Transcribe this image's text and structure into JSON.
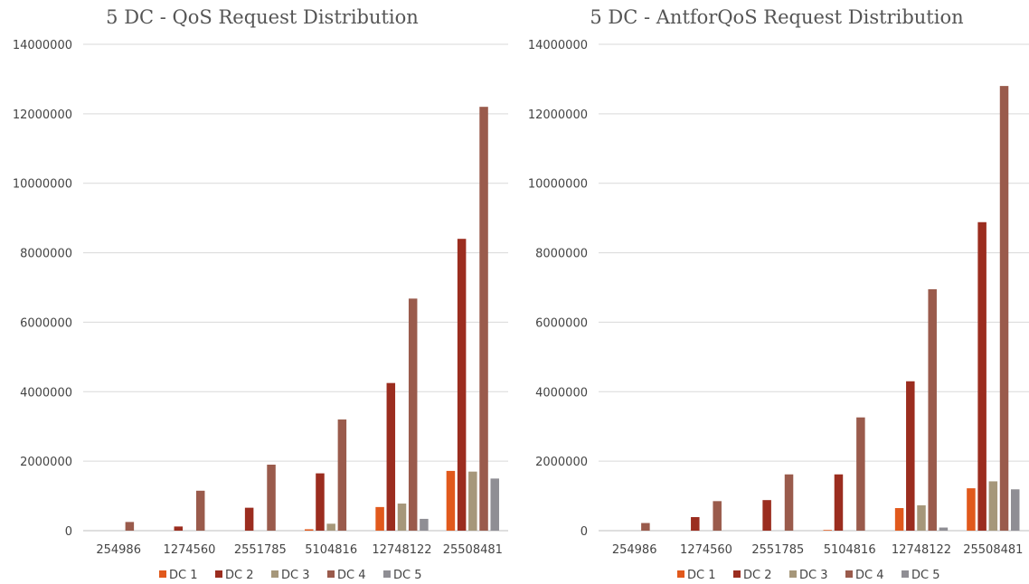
{
  "chart_data": [
    {
      "type": "bar",
      "title": "5 DC - QoS Request Distribution",
      "categories": [
        "254986",
        "1274560",
        "2551785",
        "5104816",
        "12748122",
        "25508481"
      ],
      "y_ticks": [
        "0",
        "2000000",
        "4000000",
        "6000000",
        "8000000",
        "10000000",
        "12000000",
        "14000000"
      ],
      "ylim": [
        0,
        14000000
      ],
      "grid": true,
      "legend": "bottom",
      "series": [
        {
          "name": "DC 1",
          "color": "#e1591c",
          "values": [
            0,
            0,
            0,
            40000,
            680000,
            1720000
          ]
        },
        {
          "name": "DC 2",
          "color": "#9b2d1f",
          "values": [
            0,
            120000,
            660000,
            1650000,
            4250000,
            8400000
          ]
        },
        {
          "name": "DC 3",
          "color": "#a6977a",
          "values": [
            0,
            0,
            0,
            200000,
            780000,
            1700000
          ]
        },
        {
          "name": "DC 4",
          "color": "#9a5b4c",
          "values": [
            250000,
            1150000,
            1900000,
            3200000,
            6680000,
            12200000
          ]
        },
        {
          "name": "DC 5",
          "color": "#8f8e94",
          "values": [
            0,
            0,
            0,
            0,
            340000,
            1500000
          ]
        }
      ]
    },
    {
      "type": "bar",
      "title": "5 DC - AntforQoS Request Distribution",
      "categories": [
        "254986",
        "1274560",
        "2551785",
        "5104816",
        "12748122",
        "25508481"
      ],
      "y_ticks": [
        "0",
        "2000000",
        "4000000",
        "6000000",
        "8000000",
        "10000000",
        "12000000",
        "14000000"
      ],
      "ylim": [
        0,
        14000000
      ],
      "grid": true,
      "legend": "bottom",
      "series": [
        {
          "name": "DC 1",
          "color": "#e1591c",
          "values": [
            0,
            0,
            0,
            20000,
            650000,
            1220000
          ]
        },
        {
          "name": "DC 2",
          "color": "#9b2d1f",
          "values": [
            0,
            390000,
            880000,
            1620000,
            4300000,
            8880000
          ]
        },
        {
          "name": "DC 3",
          "color": "#a6977a",
          "values": [
            0,
            0,
            0,
            0,
            730000,
            1420000
          ]
        },
        {
          "name": "DC 4",
          "color": "#9a5b4c",
          "values": [
            220000,
            850000,
            1620000,
            3260000,
            6950000,
            12800000
          ]
        },
        {
          "name": "DC 5",
          "color": "#8f8e94",
          "values": [
            0,
            0,
            0,
            0,
            90000,
            1190000
          ]
        }
      ]
    }
  ]
}
